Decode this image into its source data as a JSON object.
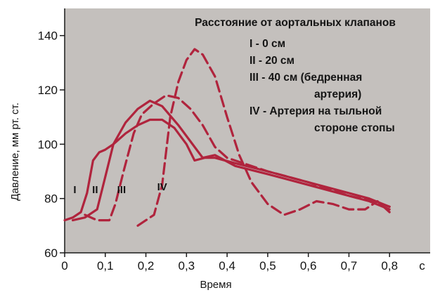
{
  "chart_data": {
    "type": "line",
    "xlabel": "Время",
    "ylabel": "Давление, мм рт. ст.",
    "x_unit": "с",
    "xlim": [
      0,
      0.9
    ],
    "ylim": [
      60,
      150
    ],
    "x_ticks": [
      0,
      0.1,
      0.2,
      0.3,
      0.4,
      0.5,
      0.6,
      0.7,
      0.8
    ],
    "x_tick_labels": [
      "0",
      "0,1",
      "0,2",
      "0,3",
      "0,4",
      "0,5",
      "0,6",
      "0,7",
      "0,8"
    ],
    "y_ticks": [
      60,
      80,
      100,
      120,
      140
    ],
    "y_tick_labels": [
      "60",
      "80",
      "100",
      "120",
      "140"
    ],
    "grid": false,
    "background": "#c4c0bd",
    "line_color": "#b0243d",
    "legend": {
      "title": "Расстояние от аортальных клапанов",
      "placement": "top-right",
      "entries": [
        [
          "I - 0 см"
        ],
        [
          "II - 20 см"
        ],
        [
          "III - 40 см  (бедренная",
          "артерия)"
        ],
        [
          "IV - Артерия на тыльной",
          "стороне стопы"
        ]
      ]
    },
    "series": [
      {
        "name": "I",
        "dash": "solid",
        "label_point": [
          0.025,
          82
        ],
        "points": [
          [
            0,
            72
          ],
          [
            0.02,
            73
          ],
          [
            0.04,
            75
          ],
          [
            0.055,
            82
          ],
          [
            0.07,
            94
          ],
          [
            0.085,
            97
          ],
          [
            0.1,
            98
          ],
          [
            0.12,
            100
          ],
          [
            0.15,
            104
          ],
          [
            0.18,
            107
          ],
          [
            0.21,
            109
          ],
          [
            0.24,
            109
          ],
          [
            0.27,
            106
          ],
          [
            0.3,
            100
          ],
          [
            0.32,
            94
          ],
          [
            0.345,
            95
          ],
          [
            0.37,
            95
          ],
          [
            0.42,
            93
          ],
          [
            0.5,
            90
          ],
          [
            0.6,
            86
          ],
          [
            0.7,
            82
          ],
          [
            0.75,
            80
          ],
          [
            0.8,
            77
          ]
        ]
      },
      {
        "name": "II",
        "dash": "solid",
        "label_point": [
          0.075,
          82
        ],
        "points": [
          [
            0.02,
            72
          ],
          [
            0.05,
            73
          ],
          [
            0.08,
            76
          ],
          [
            0.1,
            88
          ],
          [
            0.12,
            100
          ],
          [
            0.15,
            108
          ],
          [
            0.18,
            113
          ],
          [
            0.21,
            116
          ],
          [
            0.24,
            114
          ],
          [
            0.28,
            107
          ],
          [
            0.31,
            101
          ],
          [
            0.34,
            95
          ],
          [
            0.37,
            96
          ],
          [
            0.42,
            92
          ],
          [
            0.5,
            89
          ],
          [
            0.6,
            85
          ],
          [
            0.7,
            81
          ],
          [
            0.75,
            79
          ],
          [
            0.8,
            76
          ]
        ]
      },
      {
        "name": "III",
        "dash": "dashed",
        "label_point": [
          0.14,
          82
        ],
        "points": [
          [
            0.05,
            74
          ],
          [
            0.08,
            72
          ],
          [
            0.11,
            72
          ],
          [
            0.125,
            78
          ],
          [
            0.145,
            90
          ],
          [
            0.17,
            104
          ],
          [
            0.19,
            111
          ],
          [
            0.22,
            115
          ],
          [
            0.25,
            118
          ],
          [
            0.28,
            117
          ],
          [
            0.31,
            113
          ],
          [
            0.34,
            107
          ],
          [
            0.37,
            99
          ],
          [
            0.4,
            95
          ],
          [
            0.44,
            93
          ],
          [
            0.5,
            90
          ],
          [
            0.6,
            86
          ],
          [
            0.7,
            81
          ],
          [
            0.76,
            79
          ],
          [
            0.8,
            77
          ]
        ]
      },
      {
        "name": "IV",
        "dash": "dashed",
        "label_point": [
          0.24,
          83
        ],
        "points": [
          [
            0.18,
            70
          ],
          [
            0.2,
            72
          ],
          [
            0.22,
            74
          ],
          [
            0.24,
            85
          ],
          [
            0.26,
            110
          ],
          [
            0.28,
            123
          ],
          [
            0.3,
            131
          ],
          [
            0.32,
            135
          ],
          [
            0.34,
            133
          ],
          [
            0.37,
            125
          ],
          [
            0.4,
            110
          ],
          [
            0.43,
            96
          ],
          [
            0.46,
            86
          ],
          [
            0.5,
            78
          ],
          [
            0.54,
            74
          ],
          [
            0.58,
            76
          ],
          [
            0.62,
            79
          ],
          [
            0.66,
            78
          ],
          [
            0.7,
            76
          ],
          [
            0.74,
            76
          ],
          [
            0.77,
            79
          ],
          [
            0.8,
            75
          ]
        ]
      }
    ]
  }
}
